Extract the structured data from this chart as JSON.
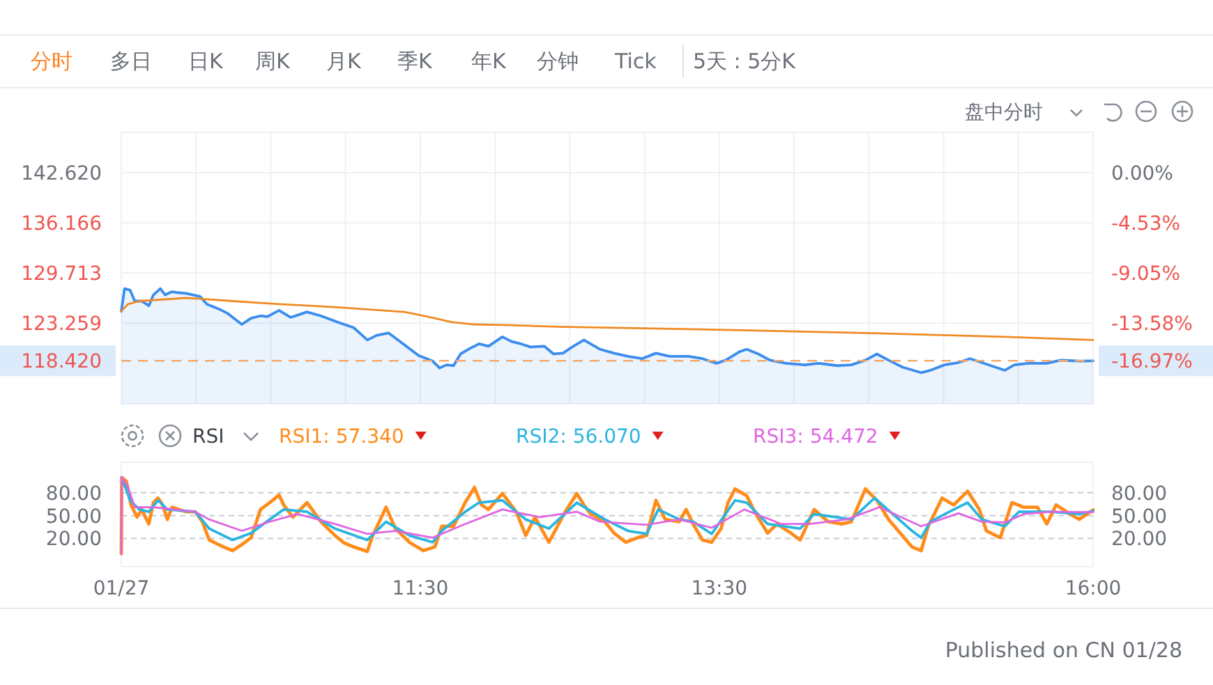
{
  "chart_data": [
    {
      "type": "line",
      "annotations": [
        "分时",
        "多日",
        "日K",
        "周K",
        "月K",
        "季K",
        "年K",
        "分钟",
        "Tick",
        "5天 : 5分K",
        "盘中分时"
      ],
      "xlim": [
        9.5,
        16
      ],
      "xticks": [
        {
          "value": 9.5,
          "label": null
        },
        {
          "value": 10,
          "label": null
        },
        {
          "value": 10.5,
          "label": null
        },
        {
          "value": 11,
          "label": null
        },
        {
          "value": 11.5,
          "label": null
        },
        {
          "value": 12,
          "label": null
        },
        {
          "value": 12.5,
          "label": null
        },
        {
          "value": 13,
          "label": null
        },
        {
          "value": 13.5,
          "label": null
        },
        {
          "value": 14,
          "label": null
        },
        {
          "value": 14.5,
          "label": null
        },
        {
          "value": 15,
          "label": null
        },
        {
          "value": 15.5,
          "label": null
        },
        {
          "value": 16,
          "label": null
        }
      ],
      "ylim": [
        112.9,
        147.8
      ],
      "yticks": [
        {
          "value": 142.62,
          "label": "142.620"
        },
        {
          "value": 136.166,
          "label": "136.166"
        },
        {
          "value": 129.713,
          "label": "129.713"
        },
        {
          "value": 123.259,
          "label": "123.259"
        }
      ],
      "y2lim": [
        -20.84,
        3.63
      ],
      "y2ticks": [
        {
          "value": 0,
          "label": "0.00%"
        },
        {
          "value": -4.53,
          "label": "-4.53%"
        },
        {
          "value": -9.05,
          "label": "-9.05%"
        },
        {
          "value": -13.58,
          "label": "-13.58%"
        },
        {
          "value": -16.97,
          "label": "-16.97%"
        }
      ],
      "tick_labels": "y",
      "grid": true,
      "marker": "none",
      "ref_lines": [
        {
          "axis": "y",
          "value": 118.42,
          "label": "118.420",
          "color": "#f5a86a",
          "line_style": "dashed"
        }
      ],
      "series": [
        {
          "type": "area",
          "color": "#3b8ded",
          "x": [
            9.5,
            9.522,
            9.559,
            9.59,
            9.637,
            9.684,
            9.715,
            9.761,
            9.793,
            9.839,
            9.87,
            9.933,
            10.026,
            10.073,
            10.151,
            10.213,
            10.306,
            10.368,
            10.43,
            10.477,
            10.555,
            10.633,
            10.742,
            10.835,
            10.96,
            11.053,
            11.146,
            11.209,
            11.287,
            11.364,
            11.489,
            11.582,
            11.629,
            11.676,
            11.722,
            11.769,
            11.831,
            11.893,
            11.956,
            12.049,
            12.111,
            12.173,
            12.236,
            12.329,
            12.391,
            12.454,
            12.516,
            12.594,
            12.703,
            12.796,
            12.889,
            12.983,
            13.076,
            13.169,
            13.294,
            13.387,
            13.481,
            13.543,
            13.636,
            13.683,
            13.761,
            13.839,
            13.947,
            14.072,
            14.165,
            14.29,
            14.383,
            14.477,
            14.554,
            14.632,
            14.726,
            14.85,
            14.912,
            15.006,
            15.099,
            15.177,
            15.255,
            15.317,
            15.41,
            15.473,
            15.566,
            15.69,
            15.784,
            15.908,
            16.0
          ],
          "values": [
            124.8,
            127.7,
            127.5,
            126.1,
            126.1,
            125.5,
            126.9,
            127.7,
            126.9,
            127.3,
            127.2,
            127.1,
            126.7,
            125.7,
            125.1,
            124.5,
            123.1,
            123.9,
            124.2,
            124.1,
            124.9,
            124.0,
            124.7,
            124.2,
            123.3,
            122.7,
            121.1,
            121.7,
            122.0,
            120.9,
            119.1,
            118.4,
            117.5,
            117.9,
            117.8,
            119.3,
            120.0,
            120.6,
            120.3,
            121.5,
            120.9,
            120.6,
            120.2,
            120.3,
            119.3,
            119.4,
            120.2,
            121.1,
            119.9,
            119.4,
            119.0,
            118.7,
            119.4,
            119.0,
            119.0,
            118.7,
            118.1,
            118.5,
            119.6,
            119.9,
            119.3,
            118.5,
            118.1,
            117.9,
            118.1,
            117.8,
            117.9,
            118.5,
            119.3,
            118.5,
            117.6,
            116.9,
            117.2,
            117.9,
            118.2,
            118.7,
            118.2,
            117.8,
            117.2,
            117.9,
            118.1,
            118.1,
            118.5,
            118.4,
            118.42
          ]
        },
        {
          "color": "#f08a24",
          "x": [
            9.5,
            9.544,
            9.621,
            9.777,
            9.933,
            10.026,
            10.244,
            10.555,
            10.866,
            11.177,
            11.395,
            11.551,
            11.707,
            11.862,
            12.111,
            12.423,
            13.543,
            14.477,
            15.41,
            16.0
          ],
          "values": [
            124.8,
            125.7,
            126.1,
            126.3,
            126.5,
            126.4,
            126.1,
            125.7,
            125.4,
            125.0,
            124.7,
            124.1,
            123.4,
            123.1,
            123.0,
            122.8,
            122.4,
            122.0,
            121.5,
            121.1
          ]
        }
      ]
    },
    {
      "type": "line",
      "annotations": [
        "RSI",
        "Published on CN 01/28"
      ],
      "xlim": [
        9.5,
        16
      ],
      "xticks": [
        {
          "value": 9.5,
          "label": "01/27"
        },
        {
          "value": 11.5,
          "label": "11:30"
        },
        {
          "value": 13.5,
          "label": "13:30"
        },
        {
          "value": 16,
          "label": "16:00"
        }
      ],
      "ylim": [
        -17,
        120
      ],
      "yticks": [
        {
          "value": 20,
          "label": "20.00"
        },
        {
          "value": 50,
          "label": "50.00"
        },
        {
          "value": 80,
          "label": "80.00"
        }
      ],
      "y2lim": [
        -17,
        120
      ],
      "y2ticks": [
        {
          "value": 20,
          "label": "20.00"
        },
        {
          "value": 50,
          "label": "50.00"
        },
        {
          "value": 80,
          "label": "80.00"
        }
      ],
      "grid": "y",
      "legend": "top left",
      "marker": "none",
      "series": [
        {
          "name": "RSI1: 57.340",
          "color": "#ff8c1a",
          "x": [
            9.5,
            9.503,
            9.534,
            9.565,
            9.606,
            9.637,
            9.684,
            9.715,
            9.746,
            9.777,
            9.808,
            9.839,
            9.933,
            9.995,
            10.042,
            10.088,
            10.182,
            10.244,
            10.306,
            10.368,
            10.431,
            10.493,
            10.555,
            10.586,
            10.648,
            10.742,
            10.835,
            10.929,
            10.991,
            11.053,
            11.146,
            11.178,
            11.271,
            11.333,
            11.427,
            11.52,
            11.598,
            11.644,
            11.722,
            11.8,
            11.862,
            11.909,
            11.956,
            12.049,
            12.142,
            12.205,
            12.267,
            12.36,
            12.469,
            12.547,
            12.594,
            12.64,
            12.734,
            12.796,
            12.874,
            12.952,
            13.014,
            13.076,
            13.138,
            13.232,
            13.278,
            13.325,
            13.387,
            13.449,
            13.512,
            13.558,
            13.605,
            13.683,
            13.745,
            13.823,
            13.885,
            13.979,
            14.041,
            14.134,
            14.228,
            14.321,
            14.383,
            14.477,
            14.554,
            14.632,
            14.788,
            14.85,
            14.897,
            14.99,
            15.068,
            15.161,
            15.239,
            15.286,
            15.379,
            15.457,
            15.535,
            15.628,
            15.69,
            15.753,
            15.846,
            15.908,
            16.0
          ],
          "values": [
            0,
            100,
            95,
            64,
            48,
            58,
            39,
            67,
            73,
            64,
            45,
            61,
            55,
            55,
            42,
            18,
            9,
            4,
            12,
            21,
            58,
            67,
            77,
            64,
            48,
            67,
            42,
            24,
            14,
            9,
            3,
            22,
            61,
            33,
            15,
            4,
            9,
            36,
            36,
            67,
            87,
            64,
            58,
            79,
            55,
            24,
            48,
            15,
            55,
            79,
            64,
            52,
            42,
            27,
            15,
            21,
            24,
            70,
            45,
            42,
            58,
            39,
            18,
            15,
            33,
            67,
            85,
            76,
            52,
            27,
            39,
            27,
            18,
            58,
            42,
            39,
            42,
            85,
            70,
            45,
            9,
            4,
            36,
            73,
            64,
            82,
            58,
            30,
            21,
            67,
            61,
            61,
            39,
            64,
            52,
            45,
            57.34
          ]
        },
        {
          "name": "RSI2: 56.070",
          "color": "#2ab5e0",
          "x": [
            9.503,
            9.559,
            9.621,
            9.684,
            9.746,
            9.808,
            9.995,
            10.088,
            10.244,
            10.368,
            10.493,
            10.586,
            10.742,
            10.929,
            11.146,
            11.271,
            11.427,
            11.582,
            11.644,
            11.8,
            11.893,
            12.049,
            12.205,
            12.36,
            12.547,
            12.734,
            12.889,
            13.014,
            13.092,
            13.232,
            13.325,
            13.449,
            13.605,
            13.683,
            13.823,
            14.041,
            14.134,
            14.383,
            14.539,
            14.788,
            14.85,
            14.912,
            15.068,
            15.161,
            15.255,
            15.41,
            15.504,
            15.722,
            15.908,
            16.0
          ],
          "values": [
            100,
            70,
            58,
            55,
            70,
            58,
            55,
            33,
            18,
            27,
            45,
            58,
            55,
            33,
            18,
            42,
            24,
            15,
            30,
            55,
            67,
            70,
            45,
            33,
            67,
            45,
            30,
            26,
            58,
            45,
            42,
            26,
            70,
            67,
            39,
            33,
            52,
            45,
            73,
            30,
            21,
            42,
            58,
            67,
            45,
            36,
            55,
            55,
            52,
            56.07
          ]
        },
        {
          "name": "RSI3: 54.472",
          "color": "#e066e0",
          "x": [
            9.5,
            9.503,
            9.544,
            9.59,
            9.715,
            9.995,
            10.088,
            10.306,
            10.493,
            10.679,
            10.929,
            11.146,
            11.333,
            11.582,
            11.8,
            12.049,
            12.298,
            12.547,
            12.702,
            13.014,
            13.232,
            13.449,
            13.667,
            13.916,
            14.103,
            14.352,
            14.57,
            14.85,
            15.099,
            15.255,
            15.41,
            15.535,
            15.722,
            16.0
          ],
          "values": [
            0,
            100,
            88,
            61,
            61,
            55,
            45,
            30,
            42,
            52,
            39,
            26,
            30,
            21,
            39,
            58,
            48,
            55,
            42,
            38,
            45,
            34,
            58,
            39,
            39,
            45,
            61,
            36,
            53,
            42,
            41,
            52,
            55,
            54.472
          ]
        }
      ]
    }
  ]
}
